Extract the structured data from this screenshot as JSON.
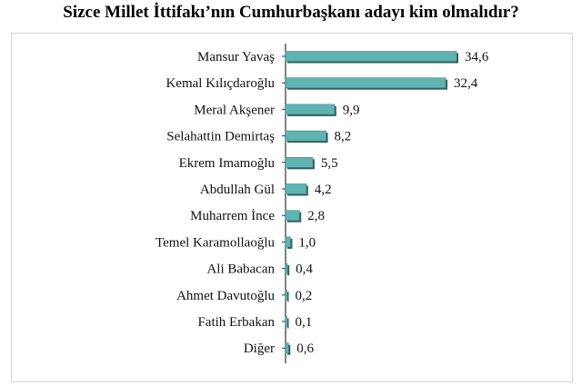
{
  "chart_data": {
    "type": "bar",
    "orientation": "horizontal",
    "title": "Sizce Millet İttifakı’nın Cumhurbaşkanı adayı kim olmalıdır?",
    "categories": [
      "Mansur Yavaş",
      "Kemal Kılıçdaroğlu",
      "Meral Akşener",
      "Selahattin Demirtaş",
      "Ekrem Imamoğlu",
      "Abdullah Gül",
      "Muharrem İnce",
      "Temel Karamollaoğlu",
      "Ali Babacan",
      "Ahmet Davutoğlu",
      "Fatih Erbakan",
      "Diğer"
    ],
    "values": [
      34.6,
      32.4,
      9.9,
      8.2,
      5.5,
      4.2,
      2.8,
      1.0,
      0.4,
      0.2,
      0.1,
      0.6
    ],
    "value_labels": [
      "34,6",
      "32,4",
      "9,9",
      "8,2",
      "5,5",
      "4,2",
      "2,8",
      "1,0",
      "0,4",
      "0,2",
      "0,1",
      "0,6"
    ],
    "xlim": [
      0,
      35
    ],
    "grid": false,
    "bar_color": "#5fb3b0",
    "bar_shadow_color": "#2f5f5d"
  }
}
